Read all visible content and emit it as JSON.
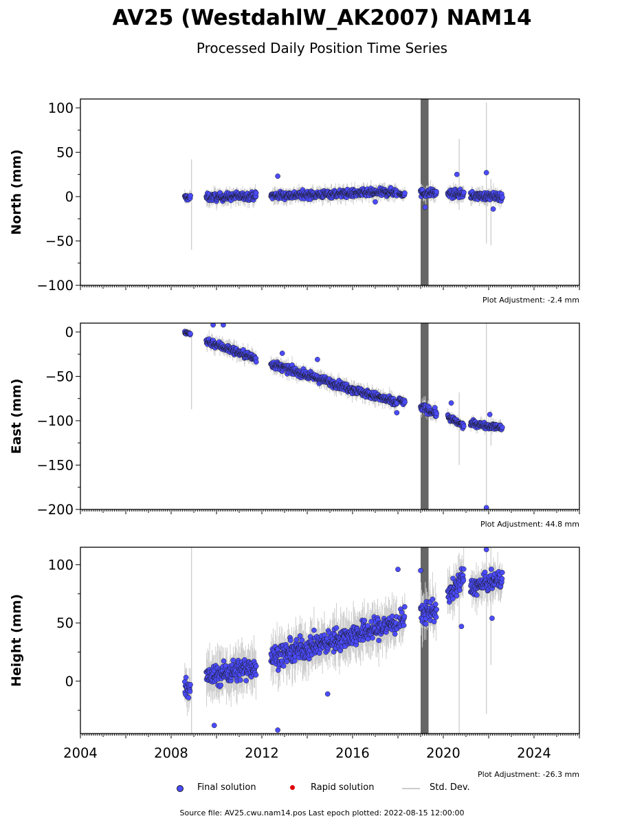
{
  "title": "AV25 (WestdahlW_AK2007) NAM14",
  "subtitle": "Processed Daily Position Time Series",
  "source_note": "Source file: AV25.cwu.nam14.pos  Last epoch plotted: 2022-08-15 12:00:00",
  "legend": {
    "final": "Final solution",
    "rapid": "Rapid solution",
    "std": "Std. Dev."
  },
  "colors": {
    "final": "#4b4bff",
    "final_edge": "#1a1a1a",
    "rapid": "#e00000",
    "std": "#cccccc",
    "gap_band": "#666666"
  },
  "chart_data": [
    {
      "type": "scatter",
      "ylabel": "North (mm)",
      "ylim": [
        -100,
        110
      ],
      "yticks": [
        100,
        50,
        0,
        -50,
        -100
      ],
      "xlim": [
        2004,
        2026
      ],
      "show_xtick_labels": false,
      "adjustment": "Plot Adjustment: -2.4 mm",
      "gap_band": [
        2019.0,
        2019.35
      ],
      "segments": [
        {
          "x": [
            2008.6,
            2008.85
          ],
          "y0": -1,
          "y1": -1,
          "noise": 3
        },
        {
          "x": [
            2009.55,
            2011.75
          ],
          "y0": -1,
          "y1": 1,
          "noise": 4
        },
        {
          "x": [
            2012.4,
            2017.95
          ],
          "y0": 1,
          "y1": 5,
          "noise": 4
        },
        {
          "x": [
            2018.05,
            2018.3
          ],
          "y0": 3,
          "y1": 3,
          "noise": 3
        },
        {
          "x": [
            2019.0,
            2019.7
          ],
          "y0": 4,
          "y1": 4,
          "noise": 4
        },
        {
          "x": [
            2020.2,
            2020.9
          ],
          "y0": 3,
          "y1": 3,
          "noise": 4
        },
        {
          "x": [
            2021.2,
            2022.6
          ],
          "y0": 1,
          "y1": 0,
          "noise": 4
        }
      ],
      "outliers": [
        {
          "x": 2012.7,
          "y": 23
        },
        {
          "x": 2020.6,
          "y": 25
        },
        {
          "x": 2021.9,
          "y": 27
        },
        {
          "x": 2022.2,
          "y": -14
        },
        {
          "x": 2019.2,
          "y": -12
        },
        {
          "x": 2017.0,
          "y": -6
        }
      ],
      "std_bars": [
        {
          "x": 2008.9,
          "lo": -60,
          "hi": 42
        },
        {
          "x": 2020.7,
          "lo": -15,
          "hi": 65
        },
        {
          "x": 2021.9,
          "lo": -53,
          "hi": 106
        },
        {
          "x": 2022.1,
          "lo": -55,
          "hi": 20
        }
      ]
    },
    {
      "type": "scatter",
      "ylabel": "East (mm)",
      "ylim": [
        -200,
        10
      ],
      "yticks": [
        0,
        -50,
        -100,
        -150,
        -200
      ],
      "xlim": [
        2004,
        2026
      ],
      "show_xtick_labels": false,
      "adjustment": "Plot Adjustment: 44.8 mm",
      "gap_band": [
        2019.0,
        2019.35
      ],
      "segments": [
        {
          "x": [
            2008.6,
            2008.85
          ],
          "y0": -1,
          "y1": -2,
          "noise": 2
        },
        {
          "x": [
            2009.55,
            2011.75
          ],
          "y0": -10,
          "y1": -30,
          "noise": 4
        },
        {
          "x": [
            2012.4,
            2017.95
          ],
          "y0": -36,
          "y1": -80,
          "noise": 4
        },
        {
          "x": [
            2018.05,
            2018.3
          ],
          "y0": -76,
          "y1": -80,
          "noise": 3
        },
        {
          "x": [
            2019.0,
            2019.7
          ],
          "y0": -84,
          "y1": -92,
          "noise": 4
        },
        {
          "x": [
            2020.2,
            2020.9
          ],
          "y0": -96,
          "y1": -106,
          "noise": 3
        },
        {
          "x": [
            2021.2,
            2022.6
          ],
          "y0": -103,
          "y1": -108,
          "noise": 3
        }
      ],
      "outliers": [
        {
          "x": 2009.85,
          "y": 8
        },
        {
          "x": 2010.3,
          "y": 8
        },
        {
          "x": 2012.9,
          "y": -24
        },
        {
          "x": 2014.45,
          "y": -31
        },
        {
          "x": 2017.95,
          "y": -91
        },
        {
          "x": 2020.35,
          "y": -80
        },
        {
          "x": 2021.9,
          "y": -198
        },
        {
          "x": 2022.05,
          "y": -93
        }
      ],
      "std_bars": [
        {
          "x": 2008.9,
          "lo": -87,
          "hi": 0
        },
        {
          "x": 2020.7,
          "lo": -150,
          "hi": -68
        },
        {
          "x": 2021.9,
          "lo": -200,
          "hi": 10
        },
        {
          "x": 2022.1,
          "lo": -128,
          "hi": -88
        }
      ]
    },
    {
      "type": "scatter",
      "ylabel": "Height (mm)",
      "ylim": [
        -45,
        115
      ],
      "yticks": [
        100,
        50,
        0
      ],
      "xlim": [
        2004,
        2026
      ],
      "xticks": [
        2004,
        2008,
        2012,
        2016,
        2020,
        2024
      ],
      "show_xtick_labels": true,
      "adjustment": "Plot Adjustment: -26.3 mm",
      "gap_band": [
        2019.0,
        2019.35
      ],
      "segments": [
        {
          "x": [
            2008.6,
            2008.85
          ],
          "y0": -5,
          "y1": -5,
          "noise": 7
        },
        {
          "x": [
            2009.55,
            2011.75
          ],
          "y0": 3,
          "y1": 13,
          "noise": 9
        },
        {
          "x": [
            2012.4,
            2017.95
          ],
          "y0": 20,
          "y1": 50,
          "noise": 9
        },
        {
          "x": [
            2018.05,
            2018.3
          ],
          "y0": 50,
          "y1": 55,
          "noise": 8
        },
        {
          "x": [
            2019.0,
            2019.7
          ],
          "y0": 58,
          "y1": 62,
          "noise": 9
        },
        {
          "x": [
            2020.2,
            2020.9
          ],
          "y0": 72,
          "y1": 90,
          "noise": 8
        },
        {
          "x": [
            2021.2,
            2022.6
          ],
          "y0": 80,
          "y1": 88,
          "noise": 7
        }
      ],
      "outliers": [
        {
          "x": 2009.9,
          "y": -38
        },
        {
          "x": 2012.7,
          "y": -42
        },
        {
          "x": 2018.0,
          "y": 96
        },
        {
          "x": 2019.0,
          "y": 95
        },
        {
          "x": 2021.9,
          "y": 113
        },
        {
          "x": 2022.15,
          "y": 54
        },
        {
          "x": 2020.8,
          "y": 47
        },
        {
          "x": 2014.9,
          "y": -11
        }
      ],
      "std_bars": [
        {
          "x": 2008.9,
          "lo": -45,
          "hi": 115
        },
        {
          "x": 2020.7,
          "lo": -45,
          "hi": 110
        },
        {
          "x": 2021.9,
          "lo": -28,
          "hi": 113
        },
        {
          "x": 2022.1,
          "lo": 14,
          "hi": 115
        }
      ]
    }
  ]
}
